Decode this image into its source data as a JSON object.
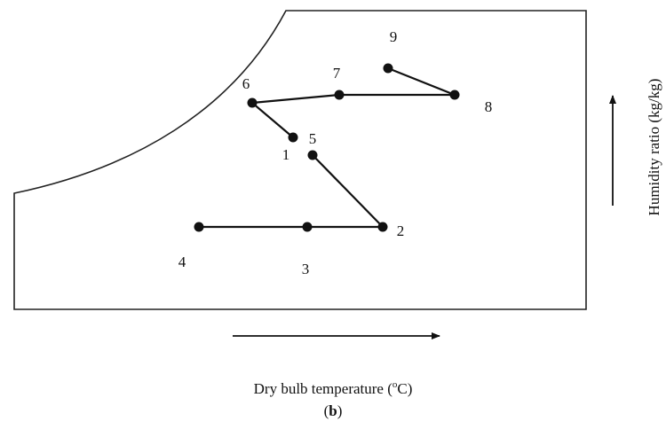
{
  "nodes": [
    {
      "label": "1"
    },
    {
      "label": "2"
    },
    {
      "label": "3"
    },
    {
      "label": "4"
    },
    {
      "label": "5"
    },
    {
      "label": "6"
    },
    {
      "label": "7"
    },
    {
      "label": "8"
    },
    {
      "label": "9"
    }
  ],
  "x_axis_label": {
    "text": "Dry bulb temperature (",
    "sup": "o",
    "end": "C)"
  },
  "y_axis_label": "Humidity ratio (kg/kg)",
  "caption": {
    "open": "(",
    "bold": "b",
    "close": ")"
  }
}
